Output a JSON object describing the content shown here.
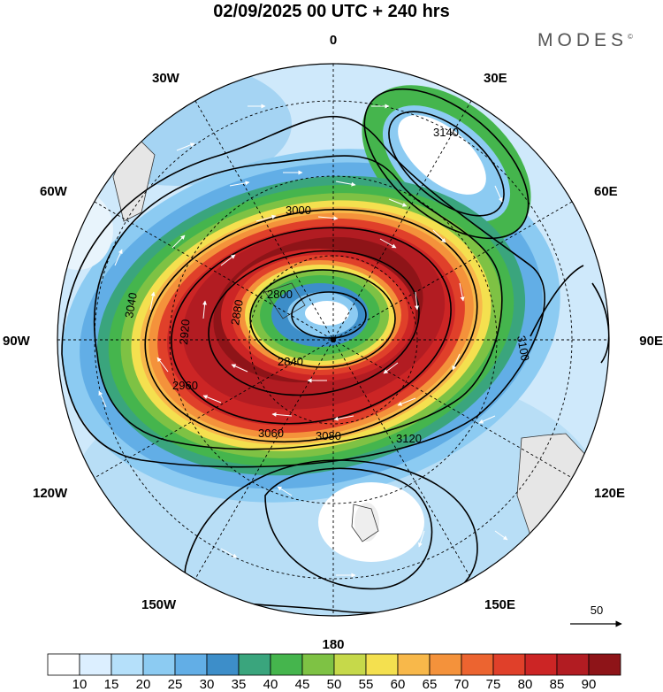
{
  "header": {
    "title": "02/09/2025  00 UTC  + 240 hrs",
    "brand": "MODES",
    "brand_mark": "©"
  },
  "longitude_labels": {
    "top": "0",
    "bottom": "180",
    "left": "90W",
    "right": "90E",
    "upper_left_1": "30W",
    "upper_left_2": "60W",
    "upper_right_1": "30E",
    "upper_right_2": "60E",
    "lower_left_1": "120W",
    "lower_left_2": "150W",
    "lower_right_1": "120E",
    "lower_right_2": "150E"
  },
  "contour_labels": [
    "2800",
    "2840",
    "2880",
    "2920",
    "2960",
    "3000",
    "3040",
    "3060",
    "3080",
    "3100",
    "3120",
    "3140"
  ],
  "reference_vector": {
    "label": "50"
  },
  "colorbar": {
    "ticks": [
      "10",
      "15",
      "20",
      "25",
      "30",
      "35",
      "40",
      "45",
      "50",
      "55",
      "60",
      "65",
      "70",
      "75",
      "80",
      "85",
      "90"
    ],
    "colors": [
      "#ffffff",
      "#dcefff",
      "#b5e0fa",
      "#8ccbf2",
      "#62aee6",
      "#3d8ec9",
      "#3aa57d",
      "#45b54d",
      "#7ec244",
      "#c6d94a",
      "#f4e04f",
      "#f8b84a",
      "#f4923b",
      "#ec6430",
      "#e0402a",
      "#cc2525",
      "#b21c22",
      "#8e1418"
    ]
  },
  "colors": {
    "land": "#d9d9d9",
    "contour": "#000000",
    "arrow": "#ffffff"
  }
}
